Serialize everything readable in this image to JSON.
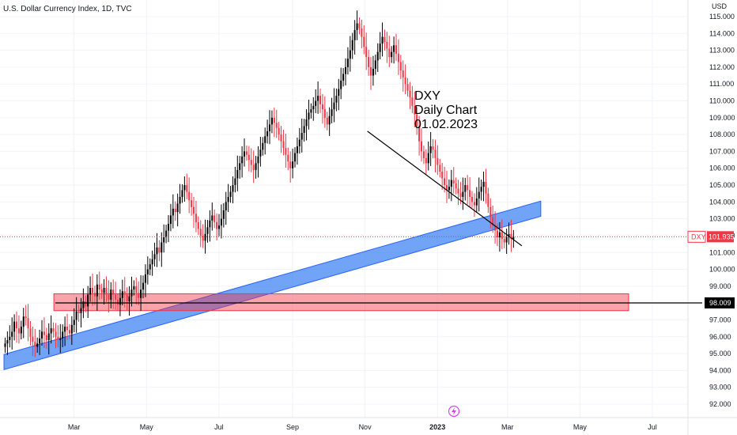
{
  "chart_data": {
    "type": "candlestick",
    "title": "U.S. Dollar Currency Index, 1D, TVC",
    "currency_label": "USD",
    "ylim": [
      91.6,
      115.4
    ],
    "y_ticks": [
      92,
      93,
      94,
      95,
      96,
      97,
      98,
      99,
      100,
      101,
      102,
      103,
      104,
      105,
      106,
      107,
      108,
      109,
      110,
      111,
      112,
      113,
      114,
      115
    ],
    "y_tick_labels": [
      "92.000",
      "93.000",
      "94.000",
      "95.000",
      "96.000",
      "97.000",
      "98.000",
      "99.000",
      "100.000",
      "101.000",
      "102.000",
      "103.000",
      "104.000",
      "105.000",
      "106.000",
      "107.000",
      "108.000",
      "109.000",
      "110.000",
      "111.000",
      "112.000",
      "113.000",
      "114.000",
      "115.000"
    ],
    "x_ticks": [
      "Mar",
      "May",
      "Jul",
      "Sep",
      "Nov",
      "2023",
      "Mar",
      "May",
      "Jul"
    ],
    "x_tick_days": [
      59,
      120,
      181,
      243,
      304,
      365,
      424,
      485,
      546
    ],
    "last_price": {
      "symbol": "DXY",
      "value": 101.935,
      "label": "101.935"
    },
    "support_level": {
      "value": 98.009,
      "label": "98.009"
    },
    "annotation": {
      "lines": [
        "DXY",
        "Daily Chart",
        "01.02.2023"
      ]
    },
    "trend_channel": {
      "from": {
        "day": 0,
        "price": 94.5
      },
      "to": {
        "day": 452,
        "price": 103.6
      },
      "thickness": 0.9
    },
    "support_zone": {
      "from_day": 42,
      "to_day": 526,
      "top": 98.55,
      "bottom": 97.55
    },
    "resistance_line": {
      "from": {
        "day": 306,
        "price": 108.2
      },
      "to": {
        "day": 436,
        "price": 101.4
      }
    },
    "closes": [
      95.6,
      95.8,
      96.0,
      96.3,
      96.9,
      96.5,
      96.2,
      96.6,
      97.2,
      97.1,
      96.5,
      96.0,
      95.7,
      95.4,
      95.6,
      95.9,
      96.3,
      96.1,
      95.8,
      96.2,
      96.5,
      96.3,
      96.0,
      95.8,
      95.9,
      96.3,
      96.6,
      96.4,
      96.2,
      96.7,
      97.0,
      97.5,
      97.4,
      97.7,
      98.1,
      97.8,
      98.5,
      98.9,
      98.6,
      98.4,
      99.1,
      98.8,
      98.6,
      98.9,
      98.5,
      98.2,
      98.8,
      98.5,
      98.2,
      97.9,
      98.3,
      98.7,
      98.5,
      98.1,
      98.4,
      98.8,
      99.0,
      98.6,
      98.3,
      98.8,
      99.2,
      99.7,
      100.0,
      100.3,
      100.6,
      100.9,
      101.3,
      101.0,
      101.6,
      101.9,
      102.3,
      102.7,
      103.2,
      103.6,
      103.4,
      103.9,
      104.3,
      104.7,
      105.0,
      104.6,
      104.1,
      103.7,
      103.3,
      102.8,
      102.4,
      102.0,
      101.7,
      102.1,
      102.5,
      102.9,
      103.2,
      102.8,
      102.4,
      102.6,
      103.0,
      103.5,
      104.0,
      104.3,
      104.6,
      105.0,
      105.4,
      105.9,
      106.3,
      106.7,
      107.0,
      106.8,
      106.5,
      106.2,
      105.9,
      106.3,
      106.7,
      107.1,
      107.5,
      107.9,
      108.2,
      108.6,
      109.0,
      108.7,
      108.4,
      108.0,
      107.6,
      107.2,
      106.8,
      106.4,
      106.0,
      106.4,
      106.9,
      107.3,
      107.7,
      108.1,
      108.5,
      108.9,
      109.3,
      109.5,
      109.7,
      110.0,
      110.3,
      109.8,
      109.5,
      109.0,
      108.6,
      109.1,
      109.5,
      109.9,
      110.3,
      110.7,
      111.2,
      111.6,
      112.0,
      112.5,
      113.0,
      113.6,
      114.2,
      114.6,
      114.3,
      113.8,
      113.2,
      112.6,
      112.0,
      111.5,
      111.9,
      112.4,
      112.9,
      113.4,
      113.8,
      113.5,
      113.1,
      112.6,
      112.9,
      113.3,
      112.8,
      112.3,
      111.8,
      111.4,
      111.0,
      110.6,
      110.2,
      109.7,
      109.2,
      108.5,
      107.6,
      107.0,
      106.6,
      106.3,
      106.9,
      107.3,
      107.1,
      106.6,
      106.2,
      105.8,
      105.4,
      105.0,
      104.7,
      104.9,
      105.3,
      105.1,
      104.8,
      104.5,
      104.3,
      104.6,
      105.0,
      104.7,
      104.3,
      104.0,
      103.8,
      104.2,
      104.6,
      104.9,
      105.2,
      104.5,
      103.7,
      103.1,
      102.6,
      102.3,
      101.9,
      102.2,
      101.8,
      101.6,
      101.9,
      102.1,
      101.8,
      101.9
    ]
  }
}
